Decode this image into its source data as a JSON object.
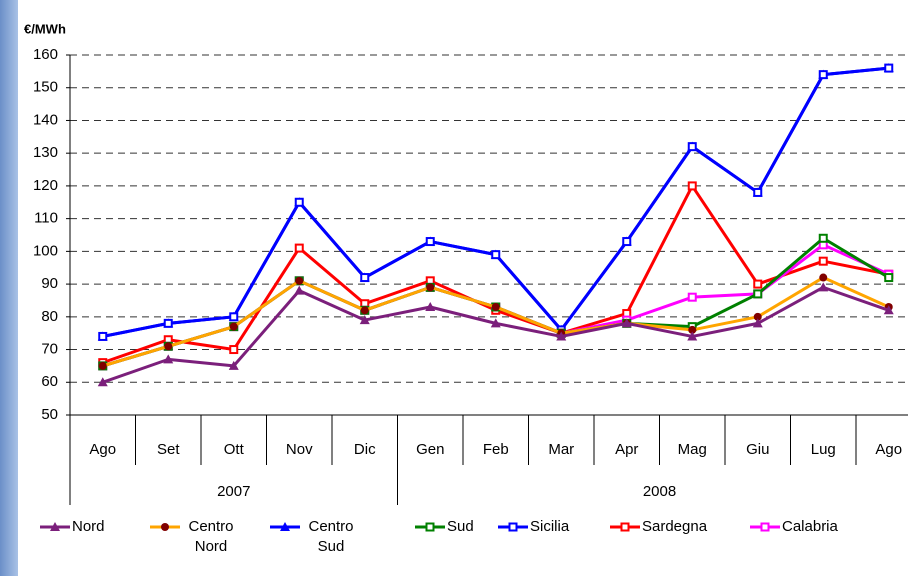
{
  "chart_data": {
    "type": "line",
    "y_label": "€/MWh",
    "categories": [
      "Ago",
      "Set",
      "Ott",
      "Nov",
      "Dic",
      "Gen",
      "Feb",
      "Mar",
      "Apr",
      "Mag",
      "Giu",
      "Lug",
      "Ago"
    ],
    "x_groups": [
      {
        "label": "2007",
        "count": 5
      },
      {
        "label": "2008",
        "count": 8
      }
    ],
    "ylim": [
      50,
      160
    ],
    "yticks": [
      50,
      60,
      70,
      80,
      90,
      100,
      110,
      120,
      130,
      140,
      150,
      160
    ],
    "grid": true,
    "legend": "bottom",
    "series": [
      {
        "name": "Nord",
        "color": "#7b1f7b",
        "marker": "triangle",
        "values": [
          60,
          67,
          65,
          88,
          79,
          83,
          78,
          74,
          78,
          74,
          78,
          89,
          82
        ]
      },
      {
        "name": "Centro Nord",
        "color": "#ffa500",
        "marker_color": "#800000",
        "marker": "circle",
        "values": [
          65,
          71,
          77,
          91,
          82,
          89,
          83,
          75,
          78,
          76,
          80,
          92,
          83
        ]
      },
      {
        "name": "Centro Sud",
        "color": "#0000ff",
        "marker": "triangle",
        "values": [
          74,
          78,
          80,
          115,
          92,
          103,
          99,
          76,
          103,
          132,
          118,
          154,
          156
        ]
      },
      {
        "name": "Sud",
        "color": "#008000",
        "marker": "square",
        "values": [
          65,
          71,
          77,
          91,
          82,
          89,
          83,
          75,
          78,
          77,
          87,
          104,
          92
        ]
      },
      {
        "name": "Sicilia",
        "color": "#0000ff",
        "marker": "square",
        "values": [
          74,
          78,
          80,
          115,
          92,
          103,
          99,
          76,
          103,
          132,
          118,
          154,
          156
        ]
      },
      {
        "name": "Sardegna",
        "color": "#ff0000",
        "marker": "square",
        "values": [
          66,
          73,
          70,
          101,
          84,
          91,
          82,
          75,
          81,
          120,
          90,
          97,
          93
        ]
      },
      {
        "name": "Calabria",
        "color": "#ff00ff",
        "marker": "square",
        "values": [
          65,
          71,
          77,
          91,
          82,
          89,
          83,
          75,
          79,
          86,
          87,
          102,
          93
        ]
      }
    ]
  }
}
